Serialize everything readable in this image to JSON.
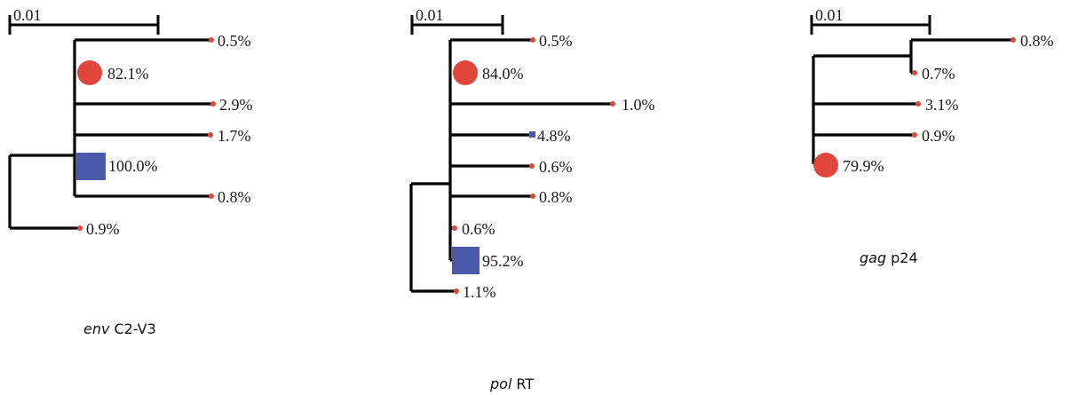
{
  "colors": {
    "branch": "#000000",
    "circle_marker": "#e0463c",
    "square_marker": "#4a59a8",
    "dot_marker": "#e0463c"
  },
  "trees": [
    {
      "id": "env",
      "scale_label": "0.01",
      "caption_gene": "env",
      "caption_region": "C2-V3",
      "leaves": [
        {
          "label": "0.5%",
          "marker": "dot"
        },
        {
          "label": "82.1%",
          "marker": "circle"
        },
        {
          "label": "2.9%",
          "marker": "dot"
        },
        {
          "label": "1.7%",
          "marker": "dot"
        },
        {
          "label": "100.0%",
          "marker": "square"
        },
        {
          "label": "0.8%",
          "marker": "dot"
        },
        {
          "label": "0.9%",
          "marker": "dot"
        }
      ]
    },
    {
      "id": "pol",
      "scale_label": "0.01",
      "caption_gene": "pol",
      "caption_region": "RT",
      "leaves": [
        {
          "label": "0.5%",
          "marker": "dot"
        },
        {
          "label": "84.0%",
          "marker": "circle"
        },
        {
          "label": "1.0%",
          "marker": "dot"
        },
        {
          "label": "4.8%",
          "marker": "square"
        },
        {
          "label": "0.6%",
          "marker": "dot"
        },
        {
          "label": "0.8%",
          "marker": "dot"
        },
        {
          "label": "0.6%",
          "marker": "dot"
        },
        {
          "label": "95.2%",
          "marker": "square"
        },
        {
          "label": "1.1%",
          "marker": "dot"
        }
      ]
    },
    {
      "id": "gag",
      "scale_label": "0.01",
      "caption_gene": "gag",
      "caption_region": "p24",
      "leaves": [
        {
          "label": "0.8%",
          "marker": "dot"
        },
        {
          "label": "0.7%",
          "marker": "dot"
        },
        {
          "label": "3.1%",
          "marker": "dot"
        },
        {
          "label": "0.9%",
          "marker": "dot"
        },
        {
          "label": "79.9%",
          "marker": "circle"
        }
      ]
    }
  ]
}
